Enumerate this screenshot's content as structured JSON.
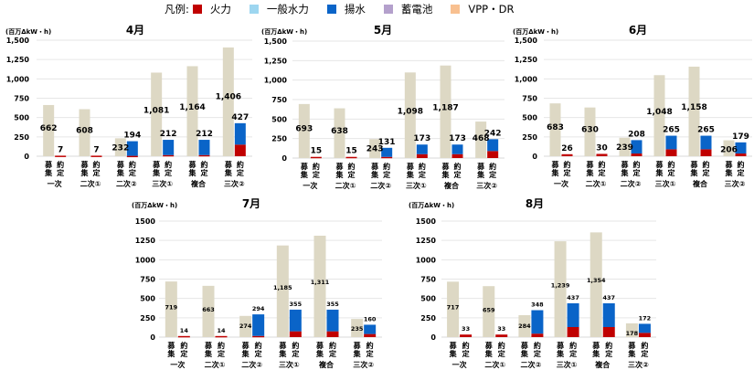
{
  "legend": {
    "title": "凡例:",
    "items": [
      {
        "name": "火力",
        "color": "#C00000"
      },
      {
        "name": "一般水力",
        "color": "#9DD6F0"
      },
      {
        "name": "揚水",
        "color": "#0A64C8"
      },
      {
        "name": "蓄電池",
        "color": "#B4A0CC"
      },
      {
        "name": "VPP・DR",
        "color": "#F8C090"
      }
    ]
  },
  "colors": {
    "recruit_bar": "#DDD8C4",
    "thermal": "#C00000",
    "pumped_hydro": "#0A64C8",
    "gridline": "#E6E6E6"
  },
  "chart_data": [
    {
      "type": "bar",
      "title": "4月",
      "ylabel": "(百万ΔkW・h)",
      "ylim": [
        0,
        1500
      ],
      "yticks": [
        "0",
        "250",
        "500",
        "750",
        "1,000",
        "1,250",
        "1,500"
      ],
      "grid": true,
      "bar_labels": [
        "募集",
        "約定"
      ],
      "categories": [
        "一次",
        "二次①",
        "二次②",
        "三次①",
        "複合",
        "三次②"
      ],
      "series": [
        {
          "name": "募集",
          "values": [
            662,
            608,
            232,
            1081,
            1164,
            1406
          ],
          "labels": [
            "662",
            "608",
            "232",
            "1,081",
            "1,164",
            "1,406"
          ]
        },
        {
          "name": "約定",
          "values": [
            7,
            7,
            194,
            212,
            212,
            427
          ],
          "labels": [
            "7",
            "7",
            "194",
            "212",
            "212",
            "427"
          ],
          "stack": {
            "火力": [
              7,
              7,
              5,
              15,
              15,
              150
            ],
            "揚水": [
              0,
              0,
              189,
              197,
              197,
              277
            ]
          }
        }
      ]
    },
    {
      "type": "bar",
      "title": "5月",
      "ylabel": "(百万ΔkW・h)",
      "ylim": [
        0,
        1500
      ],
      "yticks": [
        "0",
        "250",
        "500",
        "750",
        "1,000",
        "1,250",
        "1,500"
      ],
      "grid": true,
      "bar_labels": [
        "募集",
        "約定"
      ],
      "categories": [
        "一次",
        "二次①",
        "二次②",
        "三次①",
        "複合",
        "三次②"
      ],
      "series": [
        {
          "name": "募集",
          "values": [
            693,
            638,
            243,
            1098,
            1187,
            468
          ],
          "labels": [
            "693",
            "638",
            "243",
            "1,098",
            "1,187",
            "468"
          ]
        },
        {
          "name": "約定",
          "values": [
            15,
            15,
            131,
            173,
            173,
            242
          ],
          "labels": [
            "15",
            "15",
            "131",
            "173",
            "173",
            "242"
          ],
          "stack": {
            "火力": [
              15,
              15,
              15,
              50,
              50,
              90
            ],
            "揚水": [
              0,
              0,
              116,
              123,
              123,
              152
            ]
          }
        }
      ]
    },
    {
      "type": "bar",
      "title": "6月",
      "ylabel": "(百万ΔkW・h)",
      "ylim": [
        0,
        1500
      ],
      "yticks": [
        "0",
        "250",
        "500",
        "750",
        "1,000",
        "1,250",
        "1,500"
      ],
      "grid": true,
      "bar_labels": [
        "募集",
        "約定"
      ],
      "categories": [
        "一次",
        "二次①",
        "二次②",
        "三次①",
        "複合",
        "三次②"
      ],
      "series": [
        {
          "name": "募集",
          "values": [
            683,
            630,
            239,
            1048,
            1158,
            206
          ],
          "labels": [
            "683",
            "630",
            "239",
            "1,048",
            "1,158",
            "206"
          ]
        },
        {
          "name": "約定",
          "values": [
            26,
            30,
            208,
            265,
            265,
            179
          ],
          "labels": [
            "26",
            "30",
            "208",
            "265",
            "265",
            "179"
          ],
          "stack": {
            "火力": [
              26,
              30,
              35,
              90,
              90,
              35
            ],
            "揚水": [
              0,
              0,
              173,
              175,
              175,
              144
            ]
          }
        }
      ]
    },
    {
      "type": "bar",
      "title": "7月",
      "ylabel": "(百万ΔkW・h)",
      "ylim": [
        0,
        1500
      ],
      "yticks": [
        "0",
        "250",
        "500",
        "750",
        "1000",
        "1250",
        "1500"
      ],
      "grid": true,
      "bar_labels": [
        "募集",
        "約定"
      ],
      "categories": [
        "一次",
        "二次①",
        "二次②",
        "三次①",
        "複合",
        "三次②"
      ],
      "series": [
        {
          "name": "募集",
          "values": [
            719,
            663,
            274,
            1185,
            1311,
            235
          ],
          "labels": [
            "719",
            "663",
            "274",
            "1,185",
            "1,311",
            "235"
          ]
        },
        {
          "name": "約定",
          "values": [
            14,
            14,
            294,
            355,
            355,
            160
          ],
          "labels": [
            "14",
            "14",
            "294",
            "355",
            "355",
            "160"
          ],
          "stack": {
            "火力": [
              14,
              14,
              15,
              75,
              75,
              40
            ],
            "揚水": [
              0,
              0,
              279,
              280,
              280,
              120
            ]
          }
        }
      ]
    },
    {
      "type": "bar",
      "title": "8月",
      "ylabel": "(百万ΔkW・h)",
      "ylim": [
        0,
        1500
      ],
      "yticks": [
        "0",
        "250",
        "500",
        "750",
        "1000",
        "1250",
        "1500"
      ],
      "grid": true,
      "bar_labels": [
        "募集",
        "約定"
      ],
      "categories": [
        "一次",
        "二次①",
        "二次②",
        "三次①",
        "複合",
        "三次②"
      ],
      "series": [
        {
          "name": "募集",
          "values": [
            717,
            659,
            284,
            1239,
            1354,
            178
          ],
          "labels": [
            "717",
            "659",
            "284",
            "1,239",
            "1,354",
            "178"
          ]
        },
        {
          "name": "約定",
          "values": [
            33,
            33,
            348,
            437,
            437,
            172
          ],
          "labels": [
            "33",
            "33",
            "348",
            "437",
            "437",
            "172"
          ],
          "stack": {
            "火力": [
              33,
              33,
              45,
              130,
              130,
              55
            ],
            "揚水": [
              0,
              0,
              303,
              307,
              307,
              117
            ]
          }
        }
      ]
    }
  ]
}
